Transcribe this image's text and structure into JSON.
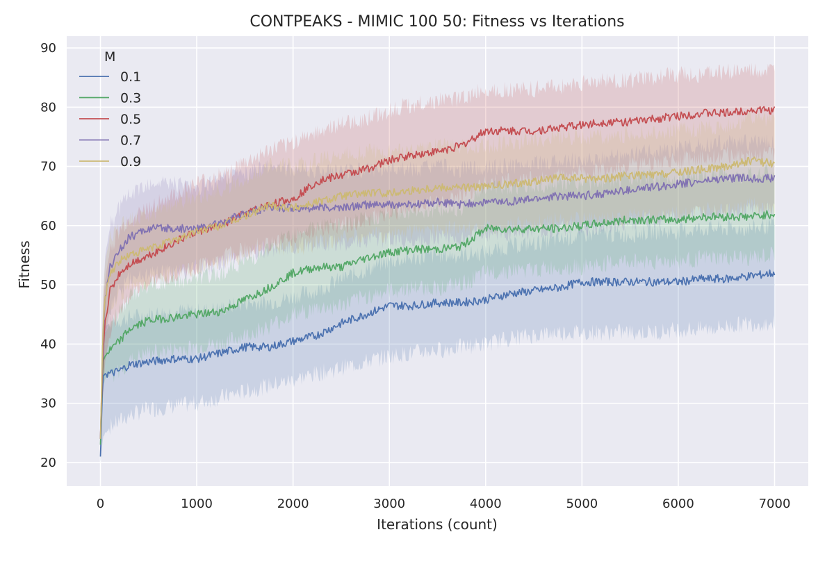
{
  "chart_data": {
    "type": "line",
    "title": "CONTPEAKS - MIMIC 100 50: Fitness vs Iterations",
    "xlabel": "Iterations (count)",
    "ylabel": "Fitness",
    "xlim": [
      -350,
      7350
    ],
    "ylim": [
      16,
      92
    ],
    "xticks": [
      0,
      1000,
      2000,
      3000,
      4000,
      5000,
      6000,
      7000
    ],
    "yticks": [
      20,
      30,
      40,
      50,
      60,
      70,
      80,
      90
    ],
    "grid": true,
    "legend": {
      "title": "M",
      "placement": "top-left"
    },
    "x": [
      0,
      25,
      50,
      100,
      200,
      300,
      500,
      750,
      1000,
      1250,
      1500,
      1750,
      2000,
      2250,
      2500,
      2750,
      3000,
      3250,
      3500,
      3750,
      4000,
      4250,
      4500,
      4750,
      5000,
      5250,
      5500,
      5750,
      6000,
      6250,
      6500,
      6750,
      7000
    ],
    "series": [
      {
        "name": "0.1",
        "color": "#4c72b0",
        "values": [
          21,
          34.5,
          35,
          35,
          35.5,
          36.5,
          37,
          37.5,
          37.5,
          38.5,
          39.5,
          39.5,
          40.5,
          41.5,
          43.5,
          45,
          46.5,
          46.5,
          47,
          47,
          47.5,
          48.5,
          49,
          49.5,
          50.5,
          50.5,
          50.5,
          50.5,
          50.5,
          51,
          51,
          51.5,
          52
        ],
        "lower": [
          20,
          24,
          25,
          26,
          27,
          28,
          29,
          29.5,
          30,
          31,
          32,
          33,
          34,
          35,
          36,
          37,
          38,
          38.5,
          39,
          39.5,
          40,
          41,
          41.5,
          42,
          42,
          42,
          42,
          42,
          42.5,
          42.5,
          43,
          43.5,
          43.5
        ],
        "upper": [
          22,
          42,
          43,
          43.5,
          44,
          44.5,
          45,
          45.5,
          45.5,
          46,
          47,
          47,
          48,
          49,
          51,
          52.5,
          54,
          54.5,
          55,
          55,
          55.5,
          56.5,
          57,
          57.5,
          58.5,
          58.5,
          58.5,
          59,
          59,
          59.5,
          59.5,
          59.5,
          60
        ]
      },
      {
        "name": "0.3",
        "color": "#55a868",
        "values": [
          23,
          37,
          38,
          39,
          40.5,
          42.5,
          44,
          44.5,
          45,
          45.5,
          47.5,
          49.5,
          52,
          53,
          53,
          54.5,
          55.5,
          56,
          56,
          56.5,
          59.5,
          59.5,
          59.5,
          59.5,
          60,
          60.5,
          61,
          61,
          61,
          61.5,
          61.5,
          61.5,
          62
        ],
        "lower": [
          21,
          33,
          34,
          34.5,
          35.5,
          37,
          38.5,
          39,
          39.5,
          40,
          41.5,
          43,
          45,
          46,
          46.5,
          48,
          49,
          49.5,
          49.5,
          50,
          52,
          52.5,
          52.5,
          53,
          53,
          53.5,
          54,
          54,
          54,
          54.5,
          54.5,
          54.5,
          55
        ],
        "upper": [
          25,
          41,
          42,
          43.5,
          45.5,
          48,
          50,
          50.5,
          51,
          52,
          54,
          56,
          59,
          60,
          60,
          61,
          62,
          62.5,
          62.5,
          63,
          66.5,
          66.5,
          66.5,
          67,
          67,
          67.5,
          68,
          68,
          68,
          68.5,
          68.5,
          68.5,
          69
        ]
      },
      {
        "name": "0.5",
        "color": "#c44e52",
        "values": [
          24,
          38,
          44,
          49,
          52,
          53.5,
          55,
          57,
          59,
          60,
          62,
          63.5,
          64.5,
          67.5,
          68.5,
          69.5,
          71,
          72,
          72.5,
          73.5,
          76,
          76,
          76,
          76.5,
          77,
          77.5,
          77.5,
          78,
          78.5,
          79,
          79,
          79.5,
          79.5
        ],
        "lower": [
          22,
          31,
          37,
          42,
          46,
          48,
          50,
          51.5,
          53,
          54.5,
          56,
          57,
          58,
          59.5,
          60,
          61,
          62,
          63,
          64,
          65,
          67,
          67.5,
          68,
          68.5,
          69,
          69.5,
          70,
          70.5,
          71,
          71.5,
          72,
          72,
          72
        ],
        "upper": [
          26,
          46,
          51,
          56,
          59,
          61,
          63,
          65,
          67,
          68.5,
          70.5,
          72.5,
          74,
          76,
          77,
          78,
          79.5,
          80.5,
          81,
          81.5,
          83,
          83,
          83,
          83.5,
          84,
          84.5,
          84.5,
          85,
          85.5,
          85.5,
          86,
          86,
          86
        ]
      },
      {
        "name": "0.7",
        "color": "#8172b2",
        "values": [
          24,
          40,
          48,
          53,
          56,
          58,
          59.5,
          59.5,
          59.5,
          60.5,
          62,
          63,
          63,
          63,
          63,
          63.5,
          63.5,
          63.5,
          64,
          63.5,
          64,
          64,
          64.5,
          65,
          65,
          65.5,
          66,
          66.5,
          67,
          67.5,
          68,
          68,
          68
        ],
        "lower": [
          22,
          34,
          41,
          46,
          49,
          51,
          52,
          52,
          52.5,
          53.5,
          55,
          56,
          56.5,
          57,
          57,
          57.5,
          57.5,
          57.5,
          58,
          58,
          58.5,
          58.5,
          59,
          59.5,
          59.5,
          60,
          60.5,
          61,
          61.5,
          62,
          62.5,
          62.5,
          62.5
        ],
        "upper": [
          26,
          46,
          55,
          60,
          63,
          65,
          67,
          67,
          66.5,
          67.5,
          69,
          70,
          69.5,
          69,
          69,
          69.5,
          69.5,
          69.5,
          70,
          69.5,
          70,
          70,
          70.5,
          71,
          71,
          71.5,
          72,
          72.5,
          73,
          73.5,
          74,
          74,
          74
        ]
      },
      {
        "name": "0.9",
        "color": "#ccb974",
        "values": [
          24,
          42,
          48,
          52,
          54,
          55,
          56,
          57.5,
          59,
          60,
          61.5,
          63.5,
          63,
          64,
          65,
          65.5,
          65.5,
          66,
          66.5,
          66.5,
          66.5,
          67,
          67.5,
          68,
          68,
          68,
          68.5,
          68.5,
          69,
          69.5,
          70,
          71,
          70.5
        ],
        "lower": [
          22,
          36,
          42,
          46,
          48,
          49.5,
          50.5,
          52,
          53,
          54,
          55,
          56.5,
          56,
          57,
          58,
          58.5,
          58.5,
          59,
          59.5,
          59.5,
          59.5,
          60,
          60.5,
          61,
          61,
          61,
          61.5,
          61.5,
          62,
          62.5,
          63,
          63.5,
          63
        ],
        "upper": [
          26,
          48,
          54,
          58,
          60,
          61,
          62,
          63.5,
          65,
          66,
          68,
          70.5,
          70,
          71,
          72,
          72.5,
          72.5,
          73,
          73.5,
          73.5,
          73.5,
          74,
          74.5,
          75,
          75,
          75,
          75.5,
          75.5,
          76,
          76.5,
          77,
          78,
          78
        ]
      }
    ]
  }
}
